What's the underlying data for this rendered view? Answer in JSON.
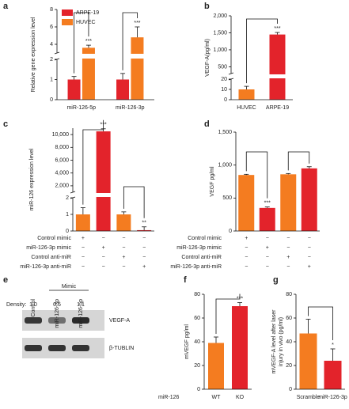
{
  "chart_data": [
    {
      "panel": "a",
      "type": "bar",
      "ylabel": "Relative gene expression level",
      "legend": "upper left",
      "categories": [
        "miR-126-5p",
        "miR-126-3p"
      ],
      "series": [
        {
          "name": "ARPE-19",
          "color": "#e3232b",
          "values": [
            1.0,
            1.0
          ],
          "errors": [
            0.15,
            0.3
          ]
        },
        {
          "name": "HUVEC",
          "color": "#f47c20",
          "values": [
            3.6,
            4.8
          ],
          "errors": [
            0.3,
            1.2
          ],
          "significance": [
            "***",
            "***"
          ]
        }
      ],
      "ylim": [
        0,
        8
      ],
      "ybreak": [
        2,
        3
      ],
      "yticks": [
        0,
        1,
        2,
        4,
        6,
        8
      ]
    },
    {
      "panel": "b",
      "type": "bar",
      "ylabel": "VEGF-A(pg/ml)",
      "categories": [
        "HUVEC",
        "ARPE-19"
      ],
      "values": [
        10,
        1450
      ],
      "errors": [
        3,
        60
      ],
      "colors": [
        "#f47c20",
        "#e3232b"
      ],
      "significance": [
        null,
        "***"
      ],
      "ylim": [
        0,
        2000
      ],
      "ybreak": [
        20,
        300
      ],
      "yticks": [
        0,
        10,
        20,
        500,
        {
          "value": 1000,
          "label": "1,000"
        },
        {
          "value": 1500,
          "label": "1,500"
        },
        {
          "value": 2000,
          "label": "2,000"
        }
      ]
    },
    {
      "panel": "c",
      "type": "bar",
      "ylabel": "miR-126 expression level",
      "categories": [
        null,
        null,
        null,
        null
      ],
      "values": [
        1.0,
        10500,
        1.0,
        0.05
      ],
      "errors": [
        0.4,
        400,
        0.15,
        0.2
      ],
      "colors": [
        "#f47c20",
        "#e3232b",
        "#f47c20",
        "#e3232b"
      ],
      "significance": [
        null,
        "***",
        null,
        "**"
      ],
      "ylim": [
        0,
        11000
      ],
      "ybreak": [
        2,
        1000
      ],
      "yticks": [
        0,
        1,
        2,
        {
          "value": 2000,
          "label": "2,000"
        },
        {
          "value": 4000,
          "label": "4,000"
        },
        {
          "value": 6000,
          "label": "6,000"
        },
        {
          "value": 8000,
          "label": "8,000"
        },
        {
          "value": 10000,
          "label": "10,000"
        }
      ],
      "conditions": [
        {
          "label": "Control mimic",
          "signs": [
            "+",
            "−",
            "−",
            "−"
          ]
        },
        {
          "label": "miR-126-3p mimic",
          "signs": [
            "−",
            "+",
            "−",
            "−"
          ]
        },
        {
          "label": "Control anti-miR",
          "signs": [
            "−",
            "−",
            "+",
            "−"
          ]
        },
        {
          "label": "miR-126-3p anti-miR",
          "signs": [
            "−",
            "−",
            "−",
            "+"
          ]
        }
      ]
    },
    {
      "panel": "d",
      "type": "bar",
      "ylabel": "VEGF pg/ml",
      "categories": [
        null,
        null,
        null,
        null
      ],
      "values": [
        850,
        350,
        860,
        950
      ],
      "errors": [
        10,
        15,
        12,
        25
      ],
      "colors": [
        "#f47c20",
        "#e3232b",
        "#f47c20",
        "#e3232b"
      ],
      "significance": [
        null,
        "***",
        null,
        null
      ],
      "ylim": [
        0,
        1500
      ],
      "yticks": [
        0,
        500,
        {
          "value": 1000,
          "label": "1,000"
        },
        {
          "value": 1500,
          "label": "1,500"
        }
      ],
      "conditions": [
        {
          "label": "Control mimic",
          "signs": [
            "+",
            "−",
            "−",
            "−"
          ]
        },
        {
          "label": "miR-126-3p mimic",
          "signs": [
            "−",
            "+",
            "−",
            "−"
          ]
        },
        {
          "label": "Control anti-miR",
          "signs": [
            "−",
            "−",
            "+",
            "−"
          ]
        },
        {
          "label": "miR-126-3p anti-miR",
          "signs": [
            "−",
            "−",
            "−",
            "+"
          ]
        }
      ]
    },
    {
      "panel": "e",
      "type": "blot",
      "group_label": "Mimic",
      "lanes": [
        "Control",
        "miR-126-3p",
        "miR-126-5p"
      ],
      "density_label": "Density:",
      "values": [
        1.0,
        0.5,
        1.1
      ],
      "value_labels": [
        "1.0",
        "0.5",
        "1.1"
      ],
      "bands": [
        "VEGF-A",
        "β-TUBLIN"
      ]
    },
    {
      "panel": "f",
      "type": "bar",
      "ylabel": "mVEGF pg/ml",
      "xlabel": "miR-126",
      "categories": [
        "WT",
        "KO"
      ],
      "values": [
        39,
        70
      ],
      "errors": [
        5,
        3
      ],
      "colors": [
        "#f47c20",
        "#e3232b"
      ],
      "significance": [
        null,
        "***"
      ],
      "ylim": [
        0,
        80
      ],
      "yticks": [
        0,
        20,
        40,
        60,
        80
      ]
    },
    {
      "panel": "g",
      "type": "bar",
      "ylabel": [
        "mVEGF-A level after laser",
        "injury in vivo (pg/ml)"
      ],
      "categories": [
        "Scramble",
        "miR-126-3p"
      ],
      "values": [
        47,
        24
      ],
      "errors": [
        12,
        10
      ],
      "colors": [
        "#f47c20",
        "#e3232b"
      ],
      "significance": [
        null,
        "*"
      ],
      "ylim": [
        0,
        80
      ],
      "yticks": [
        0,
        20,
        40,
        60,
        80
      ]
    }
  ]
}
